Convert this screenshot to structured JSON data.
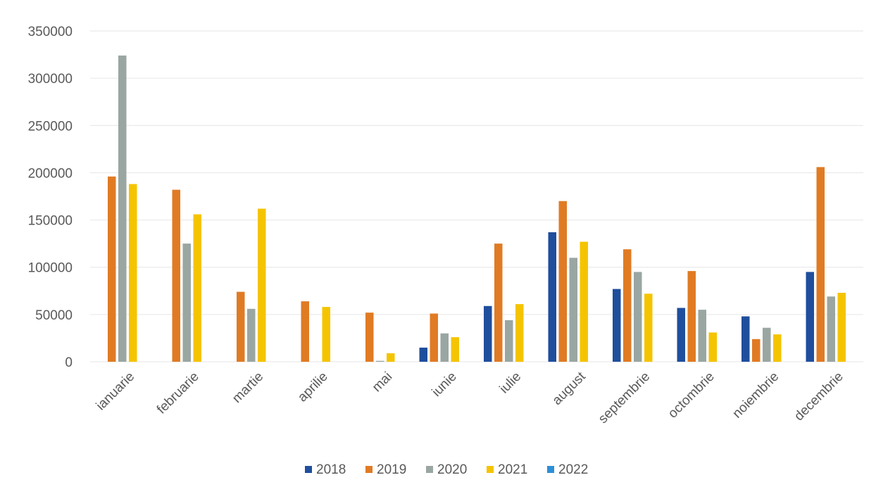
{
  "chart_data": {
    "type": "bar",
    "title": "",
    "xlabel": "",
    "ylabel": "",
    "ylim": [
      0,
      350000
    ],
    "y_ticks": [
      0,
      50000,
      100000,
      150000,
      200000,
      250000,
      300000,
      350000
    ],
    "y_tick_labels": [
      "0",
      "50000",
      "100000",
      "150000",
      "200000",
      "250000",
      "300000",
      "350000"
    ],
    "grid": true,
    "legend_position": "bottom",
    "categories": [
      "ianuarie",
      "februarie",
      "martie",
      "aprilie",
      "mai",
      "iunie",
      "iulie",
      "august",
      "septembrie",
      "octombrie",
      "noiembrie",
      "decembrie"
    ],
    "series": [
      {
        "name": "2018",
        "color": "#1f4e9c",
        "values": [
          0,
          0,
          0,
          0,
          0,
          15000,
          59000,
          137000,
          77000,
          57000,
          48000,
          95000
        ]
      },
      {
        "name": "2019",
        "color": "#e07b24",
        "values": [
          196000,
          182000,
          74000,
          64000,
          52000,
          51000,
          125000,
          170000,
          119000,
          96000,
          24000,
          206000
        ]
      },
      {
        "name": "2020",
        "color": "#9aa6a2",
        "values": [
          324000,
          125000,
          56000,
          0,
          1000,
          30000,
          44000,
          110000,
          95000,
          55000,
          36000,
          69000
        ]
      },
      {
        "name": "2021",
        "color": "#f5c400",
        "values": [
          188000,
          156000,
          162000,
          58000,
          9000,
          26000,
          61000,
          127000,
          72000,
          31000,
          29000,
          73000
        ]
      },
      {
        "name": "2022",
        "color": "#2e8fd6",
        "values": [
          0,
          0,
          0,
          0,
          0,
          0,
          0,
          0,
          0,
          0,
          0,
          0
        ]
      }
    ]
  }
}
